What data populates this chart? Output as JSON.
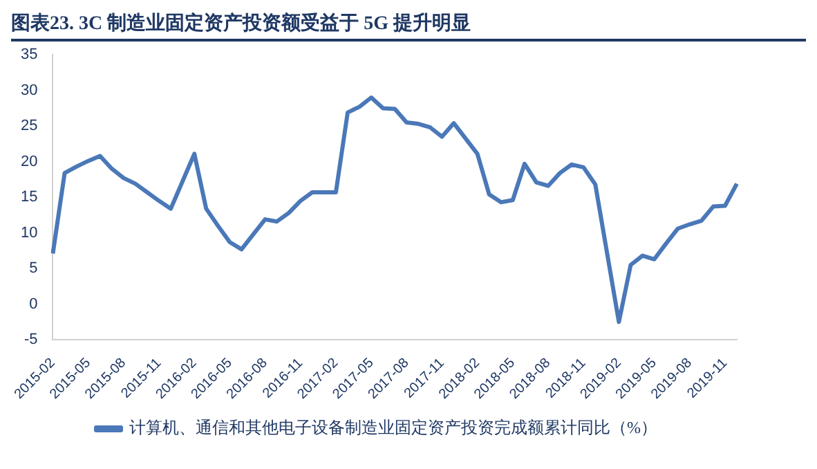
{
  "chart_data": {
    "type": "line",
    "title": "图表23.  3C 制造业固定资产投资额受益于 5G 提升明显",
    "categories": [
      "2015-02",
      null,
      null,
      "2015-05",
      null,
      null,
      "2015-08",
      null,
      null,
      "2015-11",
      null,
      null,
      "2016-02",
      null,
      null,
      "2016-05",
      null,
      null,
      "2016-08",
      null,
      null,
      "2016-11",
      null,
      null,
      "2017-02",
      null,
      null,
      "2017-05",
      null,
      null,
      "2017-08",
      null,
      null,
      "2017-11",
      null,
      null,
      "2018-02",
      null,
      null,
      "2018-05",
      null,
      null,
      "2018-08",
      null,
      null,
      "2018-11",
      null,
      null,
      "2019-02",
      null,
      null,
      "2019-05",
      null,
      null,
      "2019-08",
      null,
      null,
      "2019-11",
      null
    ],
    "series": [
      {
        "name": "计算机、通信和其他电子设备制造业固定资产投资完成额累计同比（%）",
        "color": "#4a78b8",
        "values": [
          7.1,
          18.4,
          19.3,
          20.1,
          20.8,
          19.0,
          17.7,
          16.9,
          15.7,
          14.5,
          13.4,
          null,
          21.1,
          13.4,
          11.0,
          8.7,
          7.7,
          9.8,
          11.9,
          11.6,
          12.8,
          14.5,
          15.7,
          null,
          15.7,
          26.9,
          27.7,
          29.0,
          27.5,
          27.4,
          25.5,
          25.3,
          24.8,
          23.5,
          25.4,
          null,
          21.1,
          15.4,
          14.3,
          14.6,
          19.7,
          17.1,
          16.6,
          18.4,
          19.6,
          19.2,
          16.8,
          null,
          -2.5,
          5.5,
          6.8,
          6.3,
          8.5,
          10.6,
          11.2,
          11.7,
          13.7,
          13.8,
          16.9
        ]
      }
    ],
    "ylim": [
      -5,
      35
    ],
    "yticks": [
      -5,
      0,
      5,
      10,
      15,
      20,
      25,
      30,
      35
    ],
    "legend": "bottom",
    "marker": "none"
  }
}
